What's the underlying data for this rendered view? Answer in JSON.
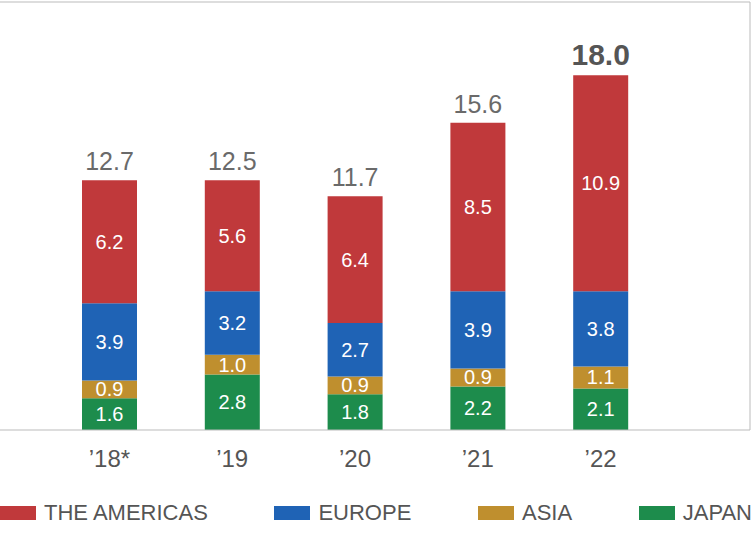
{
  "chart_data": {
    "type": "bar",
    "stacked": true,
    "data_labels": true,
    "tick_labels": "x",
    "legend": "bottom",
    "grid": false,
    "categories": [
      "’18*",
      "’19",
      "’20",
      "’21",
      "’22"
    ],
    "ylim": [
      0,
      21.6
    ],
    "yticks": [],
    "series": [
      {
        "name": "THE AMERICAS",
        "color": "#c0393b",
        "values": [
          6.2,
          5.6,
          6.4,
          8.5,
          10.9
        ]
      },
      {
        "name": "EUROPE",
        "color": "#1f63b5",
        "values": [
          3.9,
          3.2,
          2.7,
          3.9,
          3.8
        ]
      },
      {
        "name": "ASIA",
        "color": "#bf8f2e",
        "values": [
          0.9,
          1.0,
          0.9,
          0.9,
          1.1
        ],
        "value_labels": [
          "0.9",
          "1.0",
          "0.9",
          "0.9",
          "1.1"
        ]
      },
      {
        "name": "JAPAN",
        "color": "#1d8c4c",
        "values": [
          1.6,
          2.8,
          1.8,
          2.2,
          2.1
        ]
      }
    ],
    "totals": {
      "values": [
        12.7,
        12.5,
        11.7,
        15.6,
        18.0
      ],
      "value_labels": [
        "12.7",
        "12.5",
        "11.7",
        "15.6",
        "18.0"
      ]
    }
  }
}
